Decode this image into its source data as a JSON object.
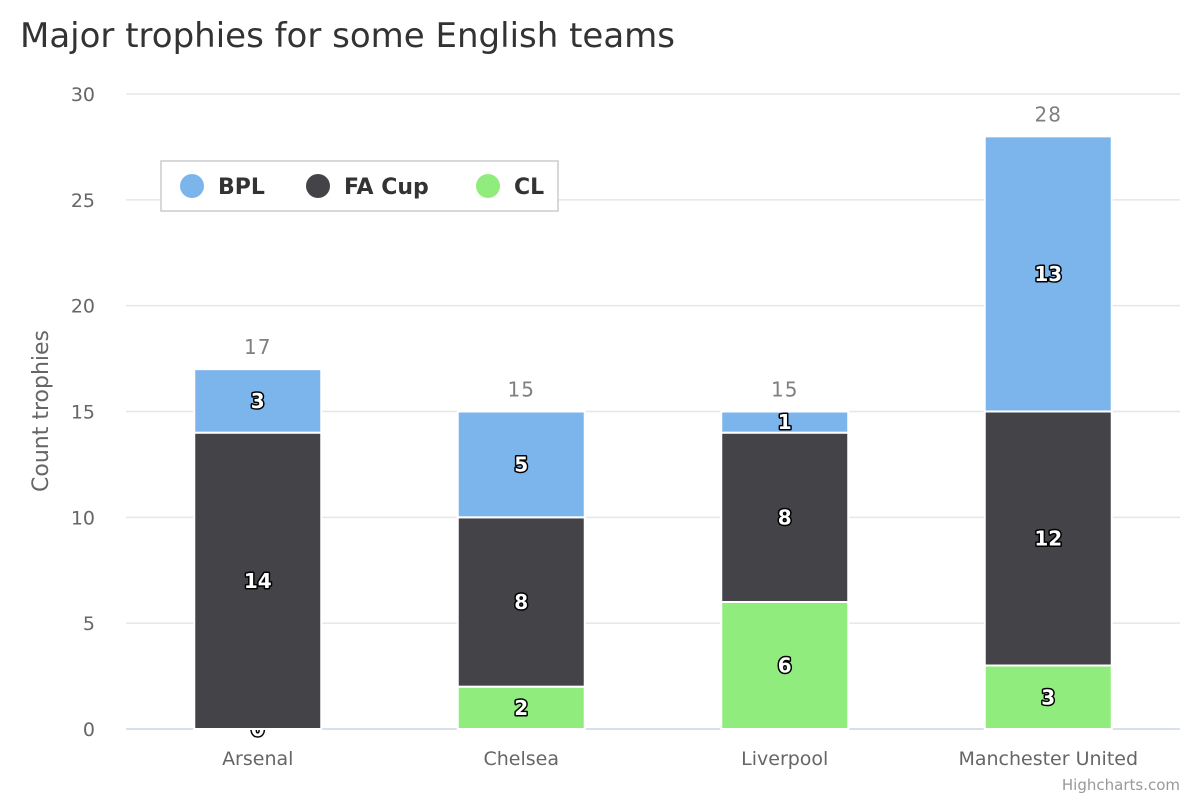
{
  "chart_data": {
    "type": "bar",
    "stacked": true,
    "title": "Major trophies for some English teams",
    "ylabel": "Count trophies",
    "xlabel": "",
    "categories": [
      "Arsenal",
      "Chelsea",
      "Liverpool",
      "Manchester United"
    ],
    "series": [
      {
        "name": "BPL",
        "values": [
          3,
          5,
          1,
          13
        ],
        "color": "#7cb5ec"
      },
      {
        "name": "FA Cup",
        "values": [
          14,
          8,
          8,
          12
        ],
        "color": "#434348"
      },
      {
        "name": "CL",
        "values": [
          0,
          2,
          6,
          3
        ],
        "color": "#90ed7d"
      }
    ],
    "totals": [
      17,
      15,
      15,
      28
    ],
    "ylim": [
      0,
      30
    ],
    "yticks": [
      0,
      5,
      10,
      15,
      20,
      25,
      30
    ],
    "grid": true,
    "legend_position": "top-left",
    "credit": "Highcharts.com"
  }
}
